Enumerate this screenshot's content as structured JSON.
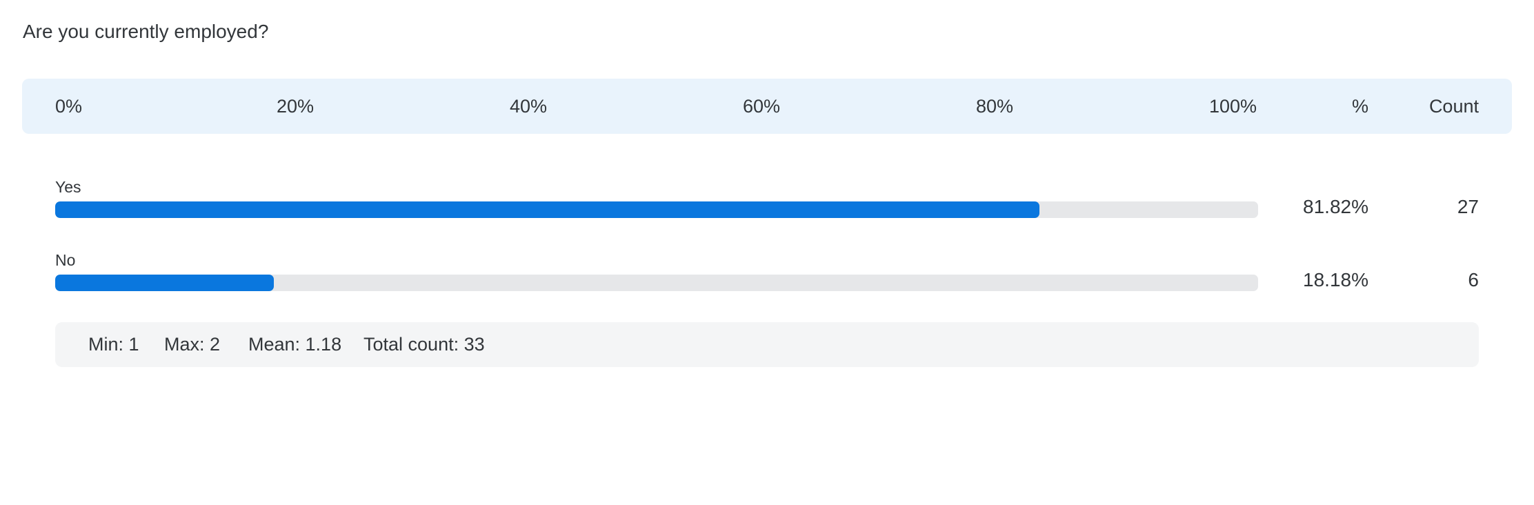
{
  "chart_data": {
    "type": "bar",
    "orientation": "horizontal",
    "title": "Are you currently employed?",
    "categories": [
      "Yes",
      "No"
    ],
    "series": [
      {
        "name": "%",
        "values": [
          81.82,
          18.18
        ],
        "labels": [
          "81.82%",
          "18.18%"
        ]
      },
      {
        "name": "Count",
        "values": [
          27,
          6
        ],
        "labels": [
          "27",
          "6"
        ]
      }
    ],
    "xlim": [
      0,
      100
    ],
    "ticks": [
      "0%",
      "20%",
      "40%",
      "60%",
      "80%",
      "100%"
    ],
    "column_headers": {
      "percent": "%",
      "count": "Count"
    },
    "colors": {
      "bar": "#0a77de",
      "track": "#e6e7e9",
      "header_bg": "#e9f3fc",
      "stats_bg": "#f4f5f6"
    }
  },
  "stats": {
    "min": "Min: 1",
    "max": "Max: 2",
    "mean": "Mean: 1.18",
    "total": "Total count: 33"
  }
}
